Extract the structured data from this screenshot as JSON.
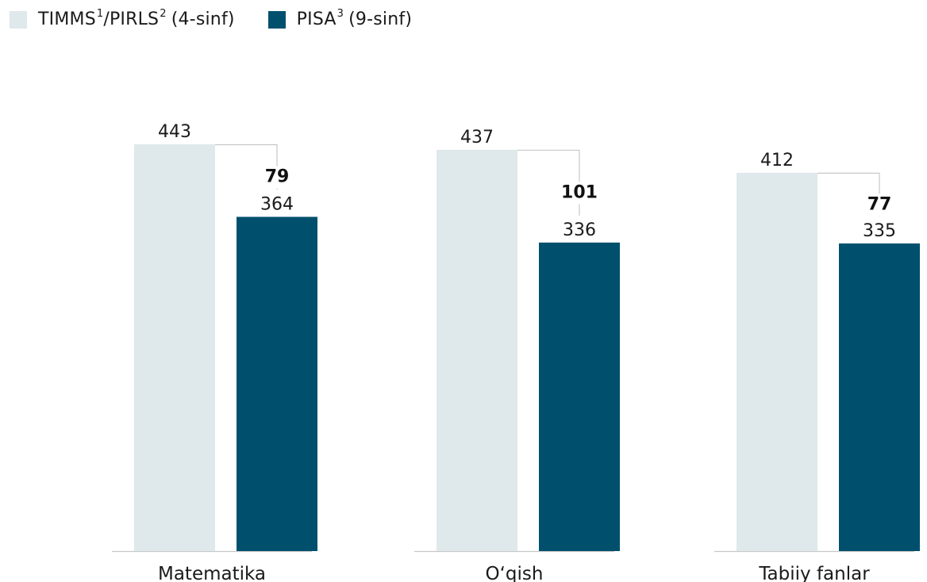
{
  "legend": {
    "series1": {
      "main": "TIMMS",
      "sup1": "1",
      "mid": "/PIRLS",
      "sup2": "2",
      "rest": "(4-sinf)"
    },
    "series2": {
      "main": "PISA",
      "sup1": "3",
      "rest": "(9-sinf)"
    }
  },
  "colors": {
    "series1": "#dfe8eb",
    "series2": "#00506d",
    "connector": "#c8c8c8",
    "axis": "#c8c8c8"
  },
  "chart_data": {
    "type": "bar",
    "categories": [
      "Matematika",
      "O‘qish",
      "Tabiiy fanlar"
    ],
    "series": [
      {
        "name": "TIMMS¹/PIRLS² (4-sinf)",
        "values": [
          443,
          437,
          412
        ]
      },
      {
        "name": "PISA³ (9-sinf)",
        "values": [
          364,
          336,
          335
        ]
      }
    ],
    "differences": [
      "79",
      "101",
      "77"
    ],
    "value_labels": {
      "series1": [
        "443",
        "437",
        "412"
      ],
      "series2": [
        "364",
        "336",
        "335"
      ]
    },
    "ylim": [
      0,
      443
    ],
    "grid": false,
    "legend_position": "top-left"
  }
}
